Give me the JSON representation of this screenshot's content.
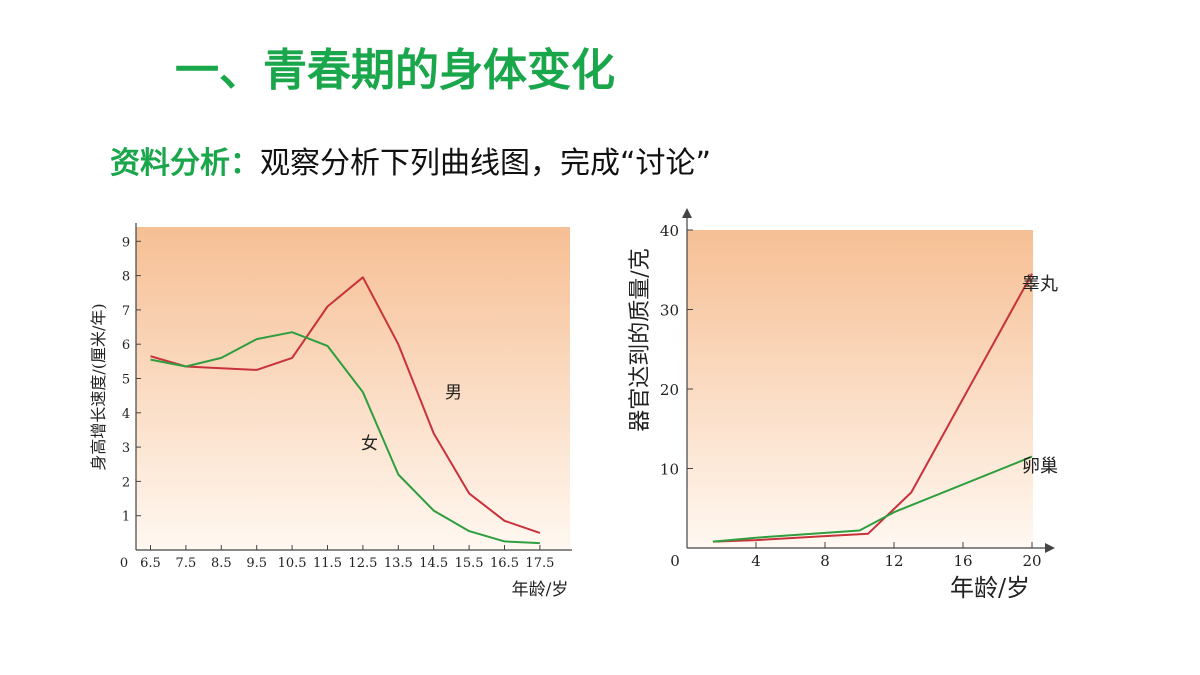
{
  "slide": {
    "title": "一、青春期的身体变化",
    "analysis_label": "资料分析：",
    "analysis_text": "观察分析下列曲线图，完成“讨论”"
  },
  "colors": {
    "accent": "#1aa64a",
    "male_line": "#c8323c",
    "female_line": "#2e9e3e",
    "plot_top": "#f6bf94",
    "plot_bottom": "#fff8f1"
  },
  "chart_data": [
    {
      "type": "line",
      "ylabel": "身高增长速度/(厘米/年)",
      "xlabel": "年龄/岁",
      "origin_label": "0",
      "categories": [
        "6.5",
        "7.5",
        "8.5",
        "9.5",
        "10.5",
        "11.5",
        "12.5",
        "13.5",
        "14.5",
        "15.5",
        "16.5",
        "17.5"
      ],
      "y_ticks": [
        "1",
        "2",
        "3",
        "4",
        "5",
        "6",
        "7",
        "8",
        "9"
      ],
      "ylim": [
        0,
        9.5
      ],
      "series": [
        {
          "name": "男",
          "color": "#c8323c",
          "values": [
            5.65,
            5.35,
            5.3,
            5.25,
            5.6,
            7.1,
            7.95,
            6.0,
            3.4,
            1.65,
            0.85,
            0.5
          ]
        },
        {
          "name": "女",
          "color": "#2e9e3e",
          "values": [
            5.55,
            5.35,
            5.6,
            6.15,
            6.35,
            5.95,
            4.6,
            2.2,
            1.15,
            0.55,
            0.25,
            0.2
          ]
        }
      ]
    },
    {
      "type": "line",
      "ylabel": "器官达到的质量/克",
      "xlabel": "年龄/岁",
      "origin_label": "0",
      "x_ticks": [
        "4",
        "8",
        "12",
        "16",
        "20"
      ],
      "y_ticks": [
        "10",
        "20",
        "30",
        "40"
      ],
      "xlim": [
        0,
        20
      ],
      "ylim": [
        0,
        40
      ],
      "series": [
        {
          "name": "睾丸",
          "color": "#c8323c",
          "x": [
            1.5,
            4,
            8,
            10.5,
            13,
            20
          ],
          "y": [
            0.8,
            1.0,
            1.5,
            1.8,
            7.0,
            34.5
          ]
        },
        {
          "name": "卵巢",
          "color": "#2e9e3e",
          "x": [
            1.5,
            4,
            8,
            10,
            12,
            20
          ],
          "y": [
            0.8,
            1.3,
            1.9,
            2.2,
            4.5,
            11.5
          ]
        }
      ]
    }
  ]
}
